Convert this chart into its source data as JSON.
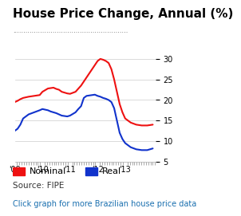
{
  "title": "House Price Change, Annual (%)",
  "title_fontsize": 11,
  "bg_color": "#ffffff",
  "plot_bg_color": "#ffffff",
  "grid_color": "#cccccc",
  "dot_line_color": "#555555",
  "ylabel_right": true,
  "yticks": [
    5,
    10,
    15,
    20,
    25,
    30
  ],
  "ylim": [
    5,
    31
  ],
  "xlim_start": 2009.0,
  "xlim_end": 2014.1,
  "xtick_labels": [
    "'09",
    "'10",
    "'11",
    "'12",
    "'13"
  ],
  "xtick_positions": [
    2009.0,
    2010.0,
    2011.0,
    2012.0,
    2013.0
  ],
  "source_text": "Source: FIPE",
  "link_text": "Click graph for more Brazilian house price data",
  "link_color": "#1a6faf",
  "nominal_color": "#ee1111",
  "real_color": "#1133cc",
  "nominal_x": [
    2009.0,
    2009.1,
    2009.2,
    2009.3,
    2009.5,
    2009.7,
    2009.9,
    2010.0,
    2010.2,
    2010.4,
    2010.5,
    2010.6,
    2010.7,
    2010.8,
    2010.9,
    2011.0,
    2011.2,
    2011.4,
    2011.5,
    2011.6,
    2011.8,
    2011.9,
    2012.0,
    2012.1,
    2012.2,
    2012.3,
    2012.4,
    2012.5,
    2012.6,
    2012.7,
    2012.8,
    2012.9,
    2013.0,
    2013.2,
    2013.4,
    2013.6,
    2013.8,
    2013.9,
    2014.0
  ],
  "nominal_y": [
    19.5,
    19.8,
    20.2,
    20.5,
    20.8,
    21.0,
    21.2,
    22.0,
    22.8,
    23.0,
    22.7,
    22.5,
    22.0,
    21.8,
    21.6,
    21.5,
    22.0,
    23.5,
    24.5,
    25.5,
    27.5,
    28.5,
    29.5,
    30.0,
    29.8,
    29.5,
    29.0,
    27.5,
    25.0,
    22.0,
    19.0,
    17.0,
    15.5,
    14.5,
    14.0,
    13.8,
    13.8,
    13.9,
    14.0
  ],
  "real_x": [
    2009.0,
    2009.1,
    2009.2,
    2009.3,
    2009.5,
    2009.7,
    2009.9,
    2010.0,
    2010.2,
    2010.3,
    2010.4,
    2010.5,
    2010.6,
    2010.7,
    2010.9,
    2011.0,
    2011.2,
    2011.3,
    2011.4,
    2011.5,
    2011.6,
    2011.8,
    2011.9,
    2012.0,
    2012.1,
    2012.2,
    2012.3,
    2012.4,
    2012.5,
    2012.6,
    2012.7,
    2012.8,
    2012.9,
    2013.0,
    2013.2,
    2013.4,
    2013.6,
    2013.8,
    2014.0
  ],
  "real_y": [
    12.5,
    13.0,
    14.0,
    15.5,
    16.5,
    17.0,
    17.5,
    17.8,
    17.5,
    17.2,
    17.0,
    16.8,
    16.5,
    16.2,
    16.0,
    16.2,
    17.0,
    17.8,
    18.5,
    20.5,
    21.0,
    21.2,
    21.3,
    21.0,
    20.8,
    20.5,
    20.3,
    20.0,
    19.5,
    18.0,
    15.0,
    12.0,
    10.5,
    9.5,
    8.5,
    8.0,
    7.8,
    7.8,
    8.2
  ],
  "legend_nominal": "Nominal",
  "legend_real": "Real",
  "legend_fontsize": 8,
  "source_fontsize": 7.5,
  "link_fontsize": 7
}
